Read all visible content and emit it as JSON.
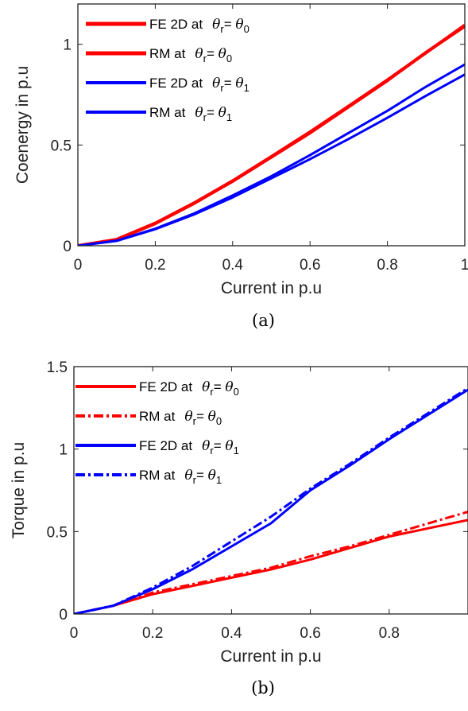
{
  "chart_data": [
    {
      "type": "line",
      "caption": "(a)",
      "xlabel": "Current in p.u",
      "ylabel": "Coenergy in p.u",
      "xlim": [
        0,
        1
      ],
      "ylim": [
        0,
        1.2
      ],
      "xticks": [
        "0",
        "0.2",
        "0.4",
        "0.6",
        "0.8",
        "1"
      ],
      "xtick_values": [
        0,
        0.2,
        0.4,
        0.6,
        0.8,
        1
      ],
      "yticks": [
        "0",
        "0.5",
        "1"
      ],
      "ytick_values": [
        0,
        0.5,
        1
      ],
      "legend_position": "top-left",
      "series": [
        {
          "name": "FE 2D at θr= θ0",
          "label_prefix": "FE 2D at",
          "label_sub": "0",
          "color": "#ff0000",
          "style": "solid",
          "width": 4,
          "x": [
            0,
            0.1,
            0.2,
            0.3,
            0.4,
            0.5,
            0.6,
            0.7,
            0.8,
            0.9,
            1.0
          ],
          "y": [
            0,
            0.03,
            0.11,
            0.21,
            0.32,
            0.44,
            0.56,
            0.69,
            0.82,
            0.96,
            1.09
          ]
        },
        {
          "name": "RM at θr= θ0",
          "label_prefix": "RM at",
          "label_sub": "0",
          "color": "#ff0000",
          "style": "solid",
          "width": 4,
          "x": [
            0,
            0.1,
            0.2,
            0.3,
            0.4,
            0.5,
            0.6,
            0.7,
            0.8,
            0.9,
            1.0
          ],
          "y": [
            0,
            0.031,
            0.112,
            0.212,
            0.322,
            0.442,
            0.565,
            0.693,
            0.823,
            0.958,
            1.095
          ]
        },
        {
          "name": "FE 2D at θr= θ1",
          "label_prefix": "FE 2D at",
          "label_sub": "1",
          "color": "#0000ff",
          "style": "solid",
          "width": 3,
          "x": [
            0,
            0.1,
            0.2,
            0.3,
            0.4,
            0.5,
            0.6,
            0.7,
            0.8,
            0.9,
            1.0
          ],
          "y": [
            0,
            0.025,
            0.085,
            0.16,
            0.25,
            0.345,
            0.45,
            0.56,
            0.67,
            0.79,
            0.9
          ]
        },
        {
          "name": "RM at θr= θ1",
          "label_prefix": "RM at",
          "label_sub": "1",
          "color": "#0000ff",
          "style": "solid",
          "width": 3,
          "x": [
            0,
            0.1,
            0.2,
            0.3,
            0.4,
            0.5,
            0.6,
            0.7,
            0.8,
            0.9,
            1.0
          ],
          "y": [
            0,
            0.024,
            0.082,
            0.155,
            0.24,
            0.335,
            0.43,
            0.53,
            0.635,
            0.745,
            0.85
          ]
        }
      ]
    },
    {
      "type": "line",
      "caption": "(b)",
      "xlabel": "Current in p.u",
      "ylabel": "Torque in p.u",
      "xlim": [
        0,
        1
      ],
      "ylim": [
        0,
        1.5
      ],
      "xticks": [
        "0",
        "0.2",
        "0.4",
        "0.6",
        "0.8"
      ],
      "xtick_values": [
        0,
        0.2,
        0.4,
        0.6,
        0.8
      ],
      "yticks": [
        "0",
        "0.5",
        "1",
        "1.5"
      ],
      "ytick_values": [
        0,
        0.5,
        1,
        1.5
      ],
      "legend_position": "top-left",
      "series": [
        {
          "name": "FE 2D at θr= θ0",
          "label_prefix": "FE 2D at",
          "label_sub": "0",
          "color": "#ff0000",
          "style": "solid",
          "width": 3,
          "x": [
            0,
            0.1,
            0.2,
            0.3,
            0.4,
            0.5,
            0.6,
            0.7,
            0.8,
            0.9,
            1.0
          ],
          "y": [
            0,
            0.05,
            0.12,
            0.17,
            0.22,
            0.27,
            0.33,
            0.4,
            0.47,
            0.52,
            0.57
          ]
        },
        {
          "name": "RM at θr= θ0",
          "label_prefix": "RM at",
          "label_sub": "0",
          "color": "#ff0000",
          "style": "dashdot",
          "width": 3,
          "x": [
            0,
            0.1,
            0.2,
            0.3,
            0.4,
            0.5,
            0.6,
            0.7,
            0.8,
            0.9,
            1.0
          ],
          "y": [
            0,
            0.05,
            0.13,
            0.18,
            0.23,
            0.28,
            0.35,
            0.41,
            0.48,
            0.55,
            0.62
          ]
        },
        {
          "name": "FE 2D at θr= θ1",
          "label_prefix": "FE 2D at",
          "label_sub": "1",
          "color": "#0000ff",
          "style": "solid",
          "width": 3,
          "x": [
            0,
            0.1,
            0.2,
            0.3,
            0.4,
            0.5,
            0.6,
            0.7,
            0.8,
            0.9,
            1.0
          ],
          "y": [
            0,
            0.05,
            0.15,
            0.27,
            0.41,
            0.55,
            0.75,
            0.9,
            1.06,
            1.21,
            1.36
          ]
        },
        {
          "name": "RM at θr= θ1",
          "label_prefix": "RM at",
          "label_sub": "1",
          "color": "#0000ff",
          "style": "dashdot",
          "width": 3,
          "x": [
            0,
            0.1,
            0.2,
            0.3,
            0.4,
            0.5,
            0.6,
            0.7,
            0.8,
            0.9,
            1.0
          ],
          "y": [
            0,
            0.05,
            0.16,
            0.29,
            0.44,
            0.59,
            0.76,
            0.91,
            1.07,
            1.22,
            1.37
          ]
        }
      ]
    }
  ]
}
